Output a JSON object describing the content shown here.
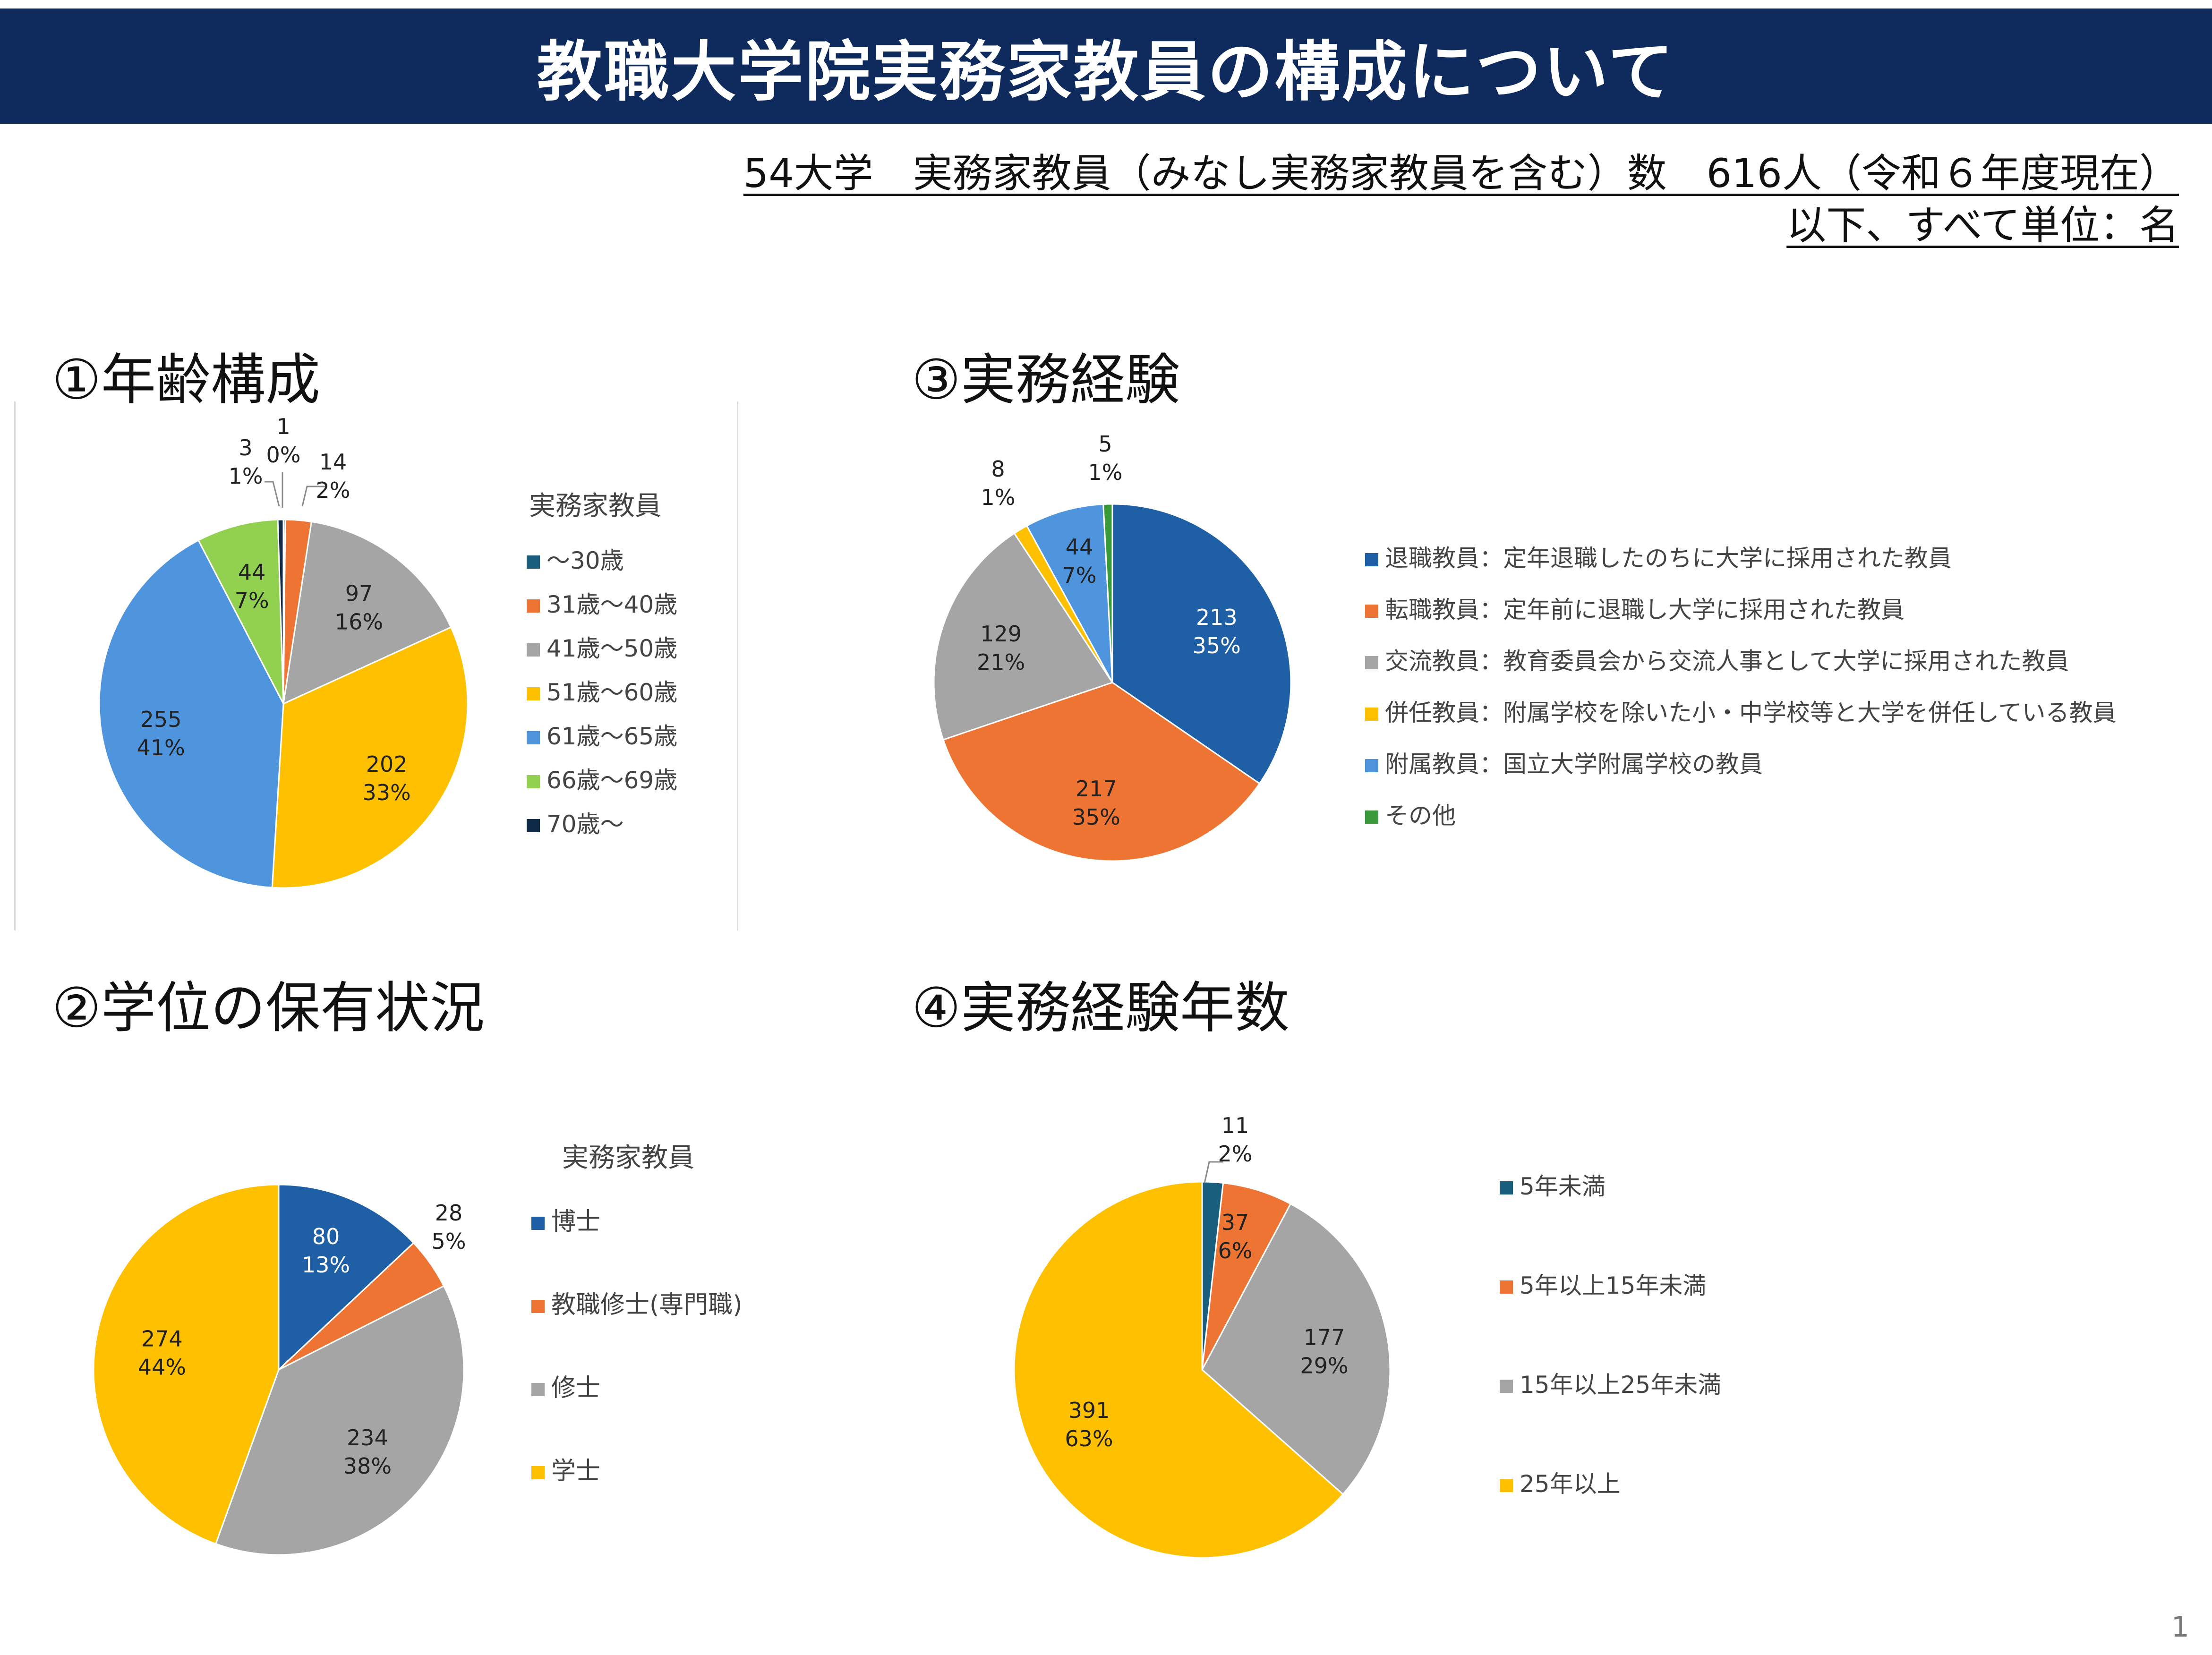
{
  "title": "教職大学院実務家教員の構成について",
  "subtitle_line1": "54大学　実務家教員（みなし実務家教員を含む）数　616人（令和６年度現在）",
  "subtitle_line2": "以下、すべて単位：名",
  "page_number": "1",
  "colors": {
    "banner": "#0f2a5c",
    "dark_blue": "#1f5fa6",
    "teal": "#1a5e7e",
    "orange": "#ed7432",
    "gray": "#a5a5a5",
    "yellow": "#ffc000",
    "light_blue": "#4f95de",
    "green": "#92d050",
    "navy": "#0e2a47",
    "dark_green": "#3a9a3a"
  },
  "sections": {
    "age": "①年齢構成",
    "degree": "②学位の保有状況",
    "experience": "③実務経験",
    "years": "④実務経験年数"
  },
  "chart_data": [
    {
      "id": "age",
      "type": "pie",
      "title": "①年齢構成",
      "legend_title": "実務家教員",
      "slices": [
        {
          "label": "～30歳",
          "value": 1,
          "value_label": "1",
          "percent": "0%",
          "color": "#1a5e7e"
        },
        {
          "label": "31歳～40歳",
          "value": 14,
          "value_label": "14",
          "percent": "2%",
          "color": "#ed7432"
        },
        {
          "label": "41歳～50歳",
          "value": 97,
          "value_label": "97",
          "percent": "16%",
          "color": "#a5a5a5"
        },
        {
          "label": "51歳～60歳",
          "value": 202,
          "value_label": "202",
          "percent": "33%",
          "color": "#ffc000"
        },
        {
          "label": "61歳～65歳",
          "value": 255,
          "value_label": "255",
          "percent": "41%",
          "color": "#4f95de"
        },
        {
          "label": "66歳～69歳",
          "value": 44,
          "value_label": "44",
          "percent": "7%",
          "color": "#92d050"
        },
        {
          "label": "70歳～",
          "value": 3,
          "value_label": "3",
          "percent": "1%",
          "color": "#0e2a47"
        }
      ]
    },
    {
      "id": "degree",
      "type": "pie",
      "title": "②学位の保有状況",
      "legend_title": "実務家教員",
      "slices": [
        {
          "label": "博士",
          "value": 80,
          "value_label": "80",
          "percent": "13%",
          "color": "#1f5fa6"
        },
        {
          "label": "教職修士(専門職)",
          "value": 28,
          "value_label": "28",
          "percent": "5%",
          "color": "#ed7432"
        },
        {
          "label": "修士",
          "value": 234,
          "value_label": "234",
          "percent": "38%",
          "color": "#a5a5a5"
        },
        {
          "label": "学士",
          "value": 274,
          "value_label": "274",
          "percent": "44%",
          "color": "#ffc000"
        }
      ]
    },
    {
      "id": "experience",
      "type": "pie",
      "title": "③実務経験",
      "legend_title": "",
      "slices": [
        {
          "label": "退職教員：定年退職したのちに大学に採用された教員",
          "value": 213,
          "value_label": "213",
          "percent": "35%",
          "color": "#1f5fa6"
        },
        {
          "label": "転職教員：定年前に退職し大学に採用された教員",
          "value": 217,
          "value_label": "217",
          "percent": "35%",
          "color": "#ed7432"
        },
        {
          "label": "交流教員：教育委員会から交流人事として大学に採用された教員",
          "value": 129,
          "value_label": "129",
          "percent": "21%",
          "color": "#a5a5a5"
        },
        {
          "label": "併任教員：附属学校を除いた小・中学校等と大学を併任している教員",
          "value": 8,
          "value_label": "8",
          "percent": "1%",
          "color": "#ffc000"
        },
        {
          "label": "附属教員：国立大学附属学校の教員",
          "value": 44,
          "value_label": "44",
          "percent": "7%",
          "color": "#4f95de"
        },
        {
          "label": "その他",
          "value": 5,
          "value_label": "5",
          "percent": "1%",
          "color": "#3a9a3a"
        }
      ]
    },
    {
      "id": "years",
      "type": "pie",
      "title": "④実務経験年数",
      "legend_title": "",
      "slices": [
        {
          "label": "5年未満",
          "value": 11,
          "value_label": "11",
          "percent": "2%",
          "color": "#1a5e7e"
        },
        {
          "label": "5年以上15年未満",
          "value": 37,
          "value_label": "37",
          "percent": "6%",
          "color": "#ed7432"
        },
        {
          "label": "15年以上25年未満",
          "value": 177,
          "value_label": "177",
          "percent": "29%",
          "color": "#a5a5a5"
        },
        {
          "label": "25年以上",
          "value": 391,
          "value_label": "391",
          "percent": "63%",
          "color": "#ffc000"
        }
      ]
    }
  ]
}
